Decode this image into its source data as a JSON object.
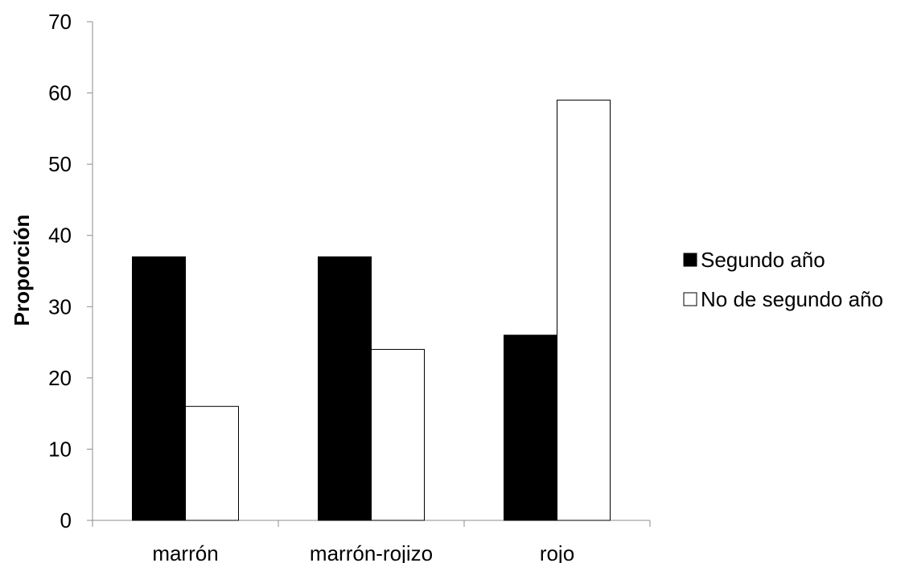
{
  "chart_data": {
    "type": "bar",
    "title": "",
    "xlabel": "",
    "ylabel": "Proporción",
    "ylim": [
      0,
      70
    ],
    "yticks": [
      0,
      10,
      20,
      30,
      40,
      50,
      60,
      70
    ],
    "categories": [
      "marrón",
      "marrón-rojizo",
      "rojo"
    ],
    "series": [
      {
        "name": "Segundo año",
        "values": [
          37,
          37,
          26
        ],
        "color": "#000000"
      },
      {
        "name": "No de segundo año",
        "values": [
          16,
          24,
          59
        ],
        "color": "#ffffff"
      }
    ],
    "legend_position": "right",
    "grid": false
  }
}
